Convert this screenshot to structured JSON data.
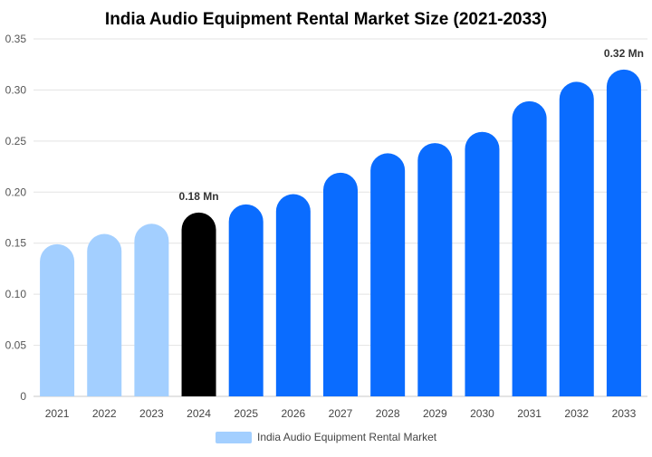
{
  "chart_data": {
    "type": "bar",
    "title": "India Audio Equipment Rental Market Size (2021-2033)",
    "xlabel": "",
    "ylabel": "",
    "categories": [
      "2021",
      "2022",
      "2023",
      "2024",
      "2025",
      "2026",
      "2027",
      "2028",
      "2029",
      "2030",
      "2031",
      "2032",
      "2033"
    ],
    "series": [
      {
        "name": "India Audio Equipment Rental Market",
        "values": [
          0.149,
          0.159,
          0.169,
          0.18,
          0.188,
          0.198,
          0.219,
          0.238,
          0.248,
          0.259,
          0.289,
          0.308,
          0.32
        ]
      }
    ],
    "bar_colors": [
      "#a3cfff",
      "#a3cfff",
      "#a3cfff",
      "#000000",
      "#0a6cff",
      "#0a6cff",
      "#0a6cff",
      "#0a6cff",
      "#0a6cff",
      "#0a6cff",
      "#0a6cff",
      "#0a6cff",
      "#0a6cff"
    ],
    "legend_color": "#a3cfff",
    "ylim": [
      0,
      0.35
    ],
    "yticks": [
      "0",
      "0.05",
      "0.10",
      "0.15",
      "0.20",
      "0.25",
      "0.30",
      "0.35"
    ],
    "ytick_values": [
      0,
      0.05,
      0.1,
      0.15,
      0.2,
      0.25,
      0.3,
      0.35
    ],
    "data_labels": [
      {
        "category": "2024",
        "text": "0.18 Mn"
      },
      {
        "category": "2033",
        "text": "0.32 Mn"
      }
    ],
    "grid": true,
    "legend_position": "bottom-center"
  }
}
